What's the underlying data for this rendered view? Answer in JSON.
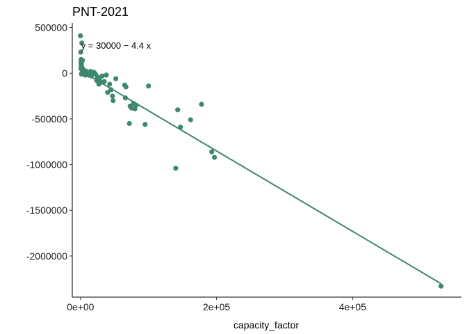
{
  "chart_data": {
    "type": "scatter",
    "title": "PNT-2021",
    "xlabel": "capacity_factor",
    "ylabel": "",
    "xlim": [
      -12000,
      560000
    ],
    "ylim": [
      -2450000,
      550000
    ],
    "x_ticks": [
      0,
      200000,
      400000
    ],
    "x_tick_labels": [
      "0e+00",
      "2e+05",
      "4e+05"
    ],
    "y_ticks": [
      500000,
      0,
      -500000,
      -1000000,
      -1500000,
      -2000000
    ],
    "y_tick_labels": [
      "500000",
      "0",
      "-500000",
      "-1000000",
      "-1500000",
      "-2000000"
    ],
    "grid": false,
    "legend": "none",
    "color": "#3f876e",
    "annotation": {
      "text": "y = 30000 − 4.4 x",
      "x": 1000,
      "y": 300000
    },
    "trendline": {
      "intercept": 30000,
      "slope": -4.4,
      "x": [
        0,
        530000
      ]
    },
    "series": [
      {
        "x": [
          0,
          2000,
          500,
          1000,
          800,
          1500,
          1200,
          700,
          3000,
          2500,
          4000,
          5000,
          6000,
          3500,
          2000,
          1500,
          4500,
          8000,
          7000,
          9000,
          10000,
          12000,
          13000,
          15000,
          16000,
          18000,
          20000,
          22000,
          25000,
          24000,
          27000,
          28000,
          30000,
          32000,
          35000,
          38000,
          40000,
          43000,
          45000,
          47000,
          48000,
          52000,
          65000,
          67000,
          66000,
          72000,
          73000,
          75000,
          78000,
          80000,
          82000,
          95000,
          100000,
          140000,
          143000,
          147000,
          162000,
          178000,
          193000,
          197000,
          530000
        ],
        "y": [
          410000,
          330000,
          230000,
          150000,
          120000,
          100000,
          80000,
          50000,
          140000,
          60000,
          40000,
          20000,
          30000,
          10000,
          0,
          -10000,
          0,
          10000,
          -20000,
          20000,
          0,
          -20000,
          10000,
          20000,
          -30000,
          0,
          10000,
          -10000,
          -40000,
          -80000,
          -120000,
          -60000,
          -100000,
          -30000,
          -90000,
          -20000,
          -210000,
          -120000,
          -180000,
          -250000,
          -300000,
          -60000,
          -130000,
          -150000,
          -270000,
          -550000,
          -360000,
          -380000,
          -330000,
          -390000,
          -350000,
          -560000,
          -140000,
          -1040000,
          -400000,
          -590000,
          -510000,
          -340000,
          -860000,
          -920000,
          -2330000
        ]
      }
    ]
  }
}
